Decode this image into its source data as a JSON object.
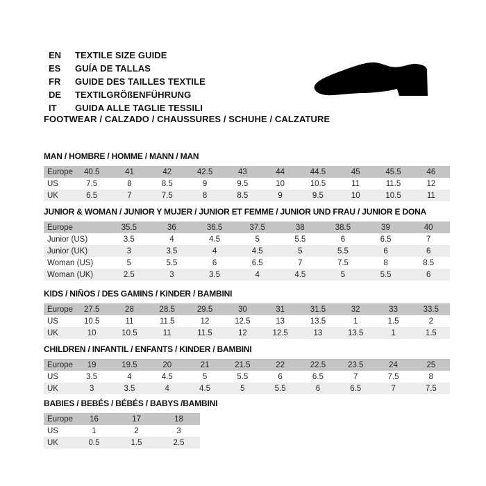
{
  "header": {
    "languages": [
      {
        "code": "EN",
        "label": "TEXTILE SIZE GUIDE"
      },
      {
        "code": "ES",
        "label": "GUÍA DE TALLAS"
      },
      {
        "code": "FR",
        "label": "GUIDE DES TAILLES TEXTILE"
      },
      {
        "code": "DE",
        "label": "TEXTILGRÖßENFÜHRUNG"
      },
      {
        "code": "IT",
        "label": "GUIDA ALLE TAGLIE TESSILI"
      }
    ],
    "category_line": "FOOTWEAR / CALZADO / CHAUSSURES / SCHUHE / CALZATURE",
    "icon": "dress-shoe-icon"
  },
  "colors": {
    "header_row_bg": "#c5c5c5",
    "alt_row_bg": "#ececec",
    "text": "#1a1a1a",
    "shoe": "#000000"
  },
  "sections": [
    {
      "title": "MAN / HOMBRE / HOMME / MANN / MAN",
      "rows": [
        {
          "label": "Europe",
          "values": [
            "40.5",
            "41",
            "42",
            "42.5",
            "43",
            "44",
            "44.5",
            "45",
            "45.5",
            "46"
          ]
        },
        {
          "label": "US",
          "values": [
            "7.5",
            "8",
            "8.5",
            "9",
            "9.5",
            "10",
            "10.5",
            "11",
            "11.5",
            "12"
          ]
        },
        {
          "label": "UK",
          "values": [
            "6.5",
            "7",
            "7.5",
            "8",
            "8.5",
            "9",
            "9.5",
            "10",
            "10.5",
            "11"
          ]
        }
      ]
    },
    {
      "title": "JUNIOR & WOMAN / JUNIOR Y MUJER / JUNIOR ET FEMME / JUNIOR UND FRAU / JUNIOR E DONA",
      "rows": [
        {
          "label": "Europe",
          "values": [
            "35.5",
            "36",
            "36.5",
            "37.5",
            "38",
            "38.5",
            "39",
            "40"
          ]
        },
        {
          "label": "Junior (US)",
          "values": [
            "3.5",
            "4",
            "4.5",
            "5",
            "5.5",
            "6",
            "6.5",
            "7"
          ]
        },
        {
          "label": "Junior (UK)",
          "values": [
            "3",
            "3.5",
            "4",
            "4.5",
            "5",
            "5.5",
            "6",
            "6"
          ]
        },
        {
          "label": "Woman (US)",
          "values": [
            "5",
            "5.5",
            "6",
            "6.5",
            "7",
            "7.5",
            "8",
            "8.5"
          ]
        },
        {
          "label": "Woman (UK)",
          "values": [
            "2.5",
            "3",
            "3.5",
            "4",
            "4.5",
            "5",
            "5.5",
            "6"
          ]
        }
      ]
    },
    {
      "title": "KIDS / NIÑOS / DES GAMINS / KINDER / BAMBINI",
      "rows": [
        {
          "label": "Europe",
          "values": [
            "27.5",
            "28",
            "28.5",
            "29.5",
            "30",
            "31",
            "31.5",
            "32",
            "33",
            "33.5"
          ]
        },
        {
          "label": "US",
          "values": [
            "10.5",
            "11",
            "11.5",
            "12",
            "12.5",
            "13",
            "13.5",
            "1",
            "1.5",
            "2"
          ]
        },
        {
          "label": "UK",
          "values": [
            "10",
            "10.5",
            "11",
            "11.5",
            "12",
            "12.5",
            "13",
            "13.5",
            "1",
            "1.5"
          ]
        }
      ]
    },
    {
      "title": "CHILDREN / INFANTIL / ENFANTS / KINDER / BAMBINI",
      "rows": [
        {
          "label": "Europe",
          "values": [
            "19",
            "19.5",
            "20",
            "21",
            "21.5",
            "22",
            "22.5",
            "23.5",
            "24",
            "25"
          ]
        },
        {
          "label": "US",
          "values": [
            "3.5",
            "4",
            "4.5",
            "5",
            "5.5",
            "6",
            "6.5",
            "7",
            "7.5",
            "8"
          ]
        },
        {
          "label": "UK",
          "values": [
            "3",
            "3.5",
            "4",
            "4.5",
            "5",
            "5.5",
            "6",
            "6.5",
            "7",
            "7.5"
          ]
        }
      ]
    },
    {
      "title": "BABIES / BEBÉS / BÉBÉS / BABYS /BAMBINI",
      "rows": [
        {
          "label": "Europe",
          "values": [
            "16",
            "17",
            "18"
          ]
        },
        {
          "label": "US",
          "values": [
            "1",
            "2",
            "3"
          ]
        },
        {
          "label": "UK",
          "values": [
            "0.5",
            "1.5",
            "2.5"
          ]
        }
      ]
    }
  ]
}
